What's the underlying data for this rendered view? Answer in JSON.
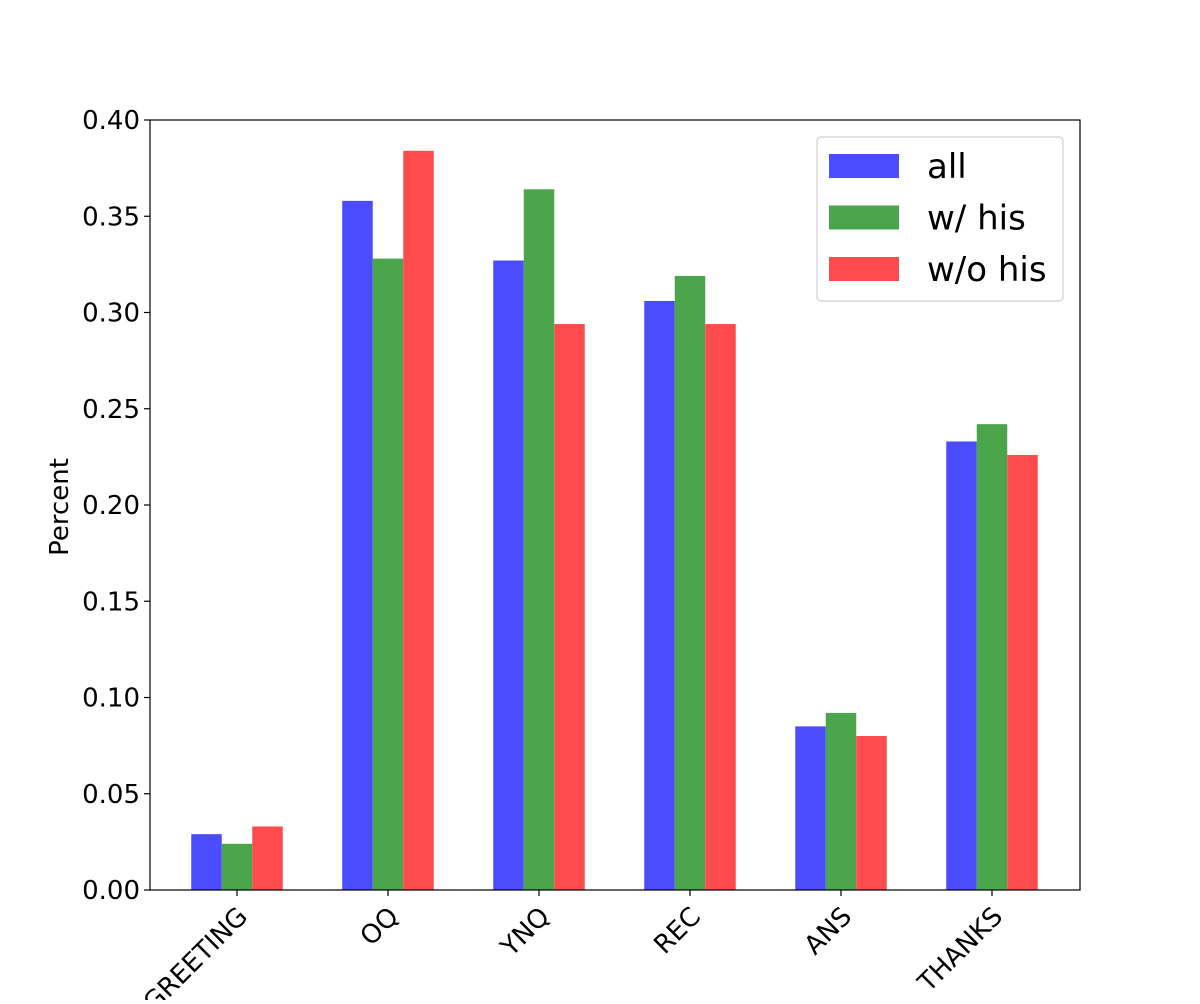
{
  "chart_data": {
    "type": "bar",
    "title": "",
    "xlabel": "",
    "ylabel": "Percent",
    "ylim": [
      0,
      0.4
    ],
    "yticks": [
      "0.00",
      "0.05",
      "0.10",
      "0.15",
      "0.20",
      "0.25",
      "0.30",
      "0.35",
      "0.40"
    ],
    "categories": [
      "GREETING",
      "OQ",
      "YNQ",
      "REC",
      "ANS",
      "THANKS"
    ],
    "series": [
      {
        "name": "all",
        "color": "#4b4bff",
        "values": [
          0.029,
          0.358,
          0.327,
          0.306,
          0.085,
          0.233
        ]
      },
      {
        "name": "w/ his",
        "color": "#4ba64b",
        "values": [
          0.024,
          0.328,
          0.364,
          0.319,
          0.092,
          0.242
        ]
      },
      {
        "name": "w/o his",
        "color": "#ff4b4b",
        "values": [
          0.033,
          0.384,
          0.294,
          0.294,
          0.08,
          0.226
        ]
      }
    ],
    "legend_position": "top-right",
    "grid": false
  }
}
